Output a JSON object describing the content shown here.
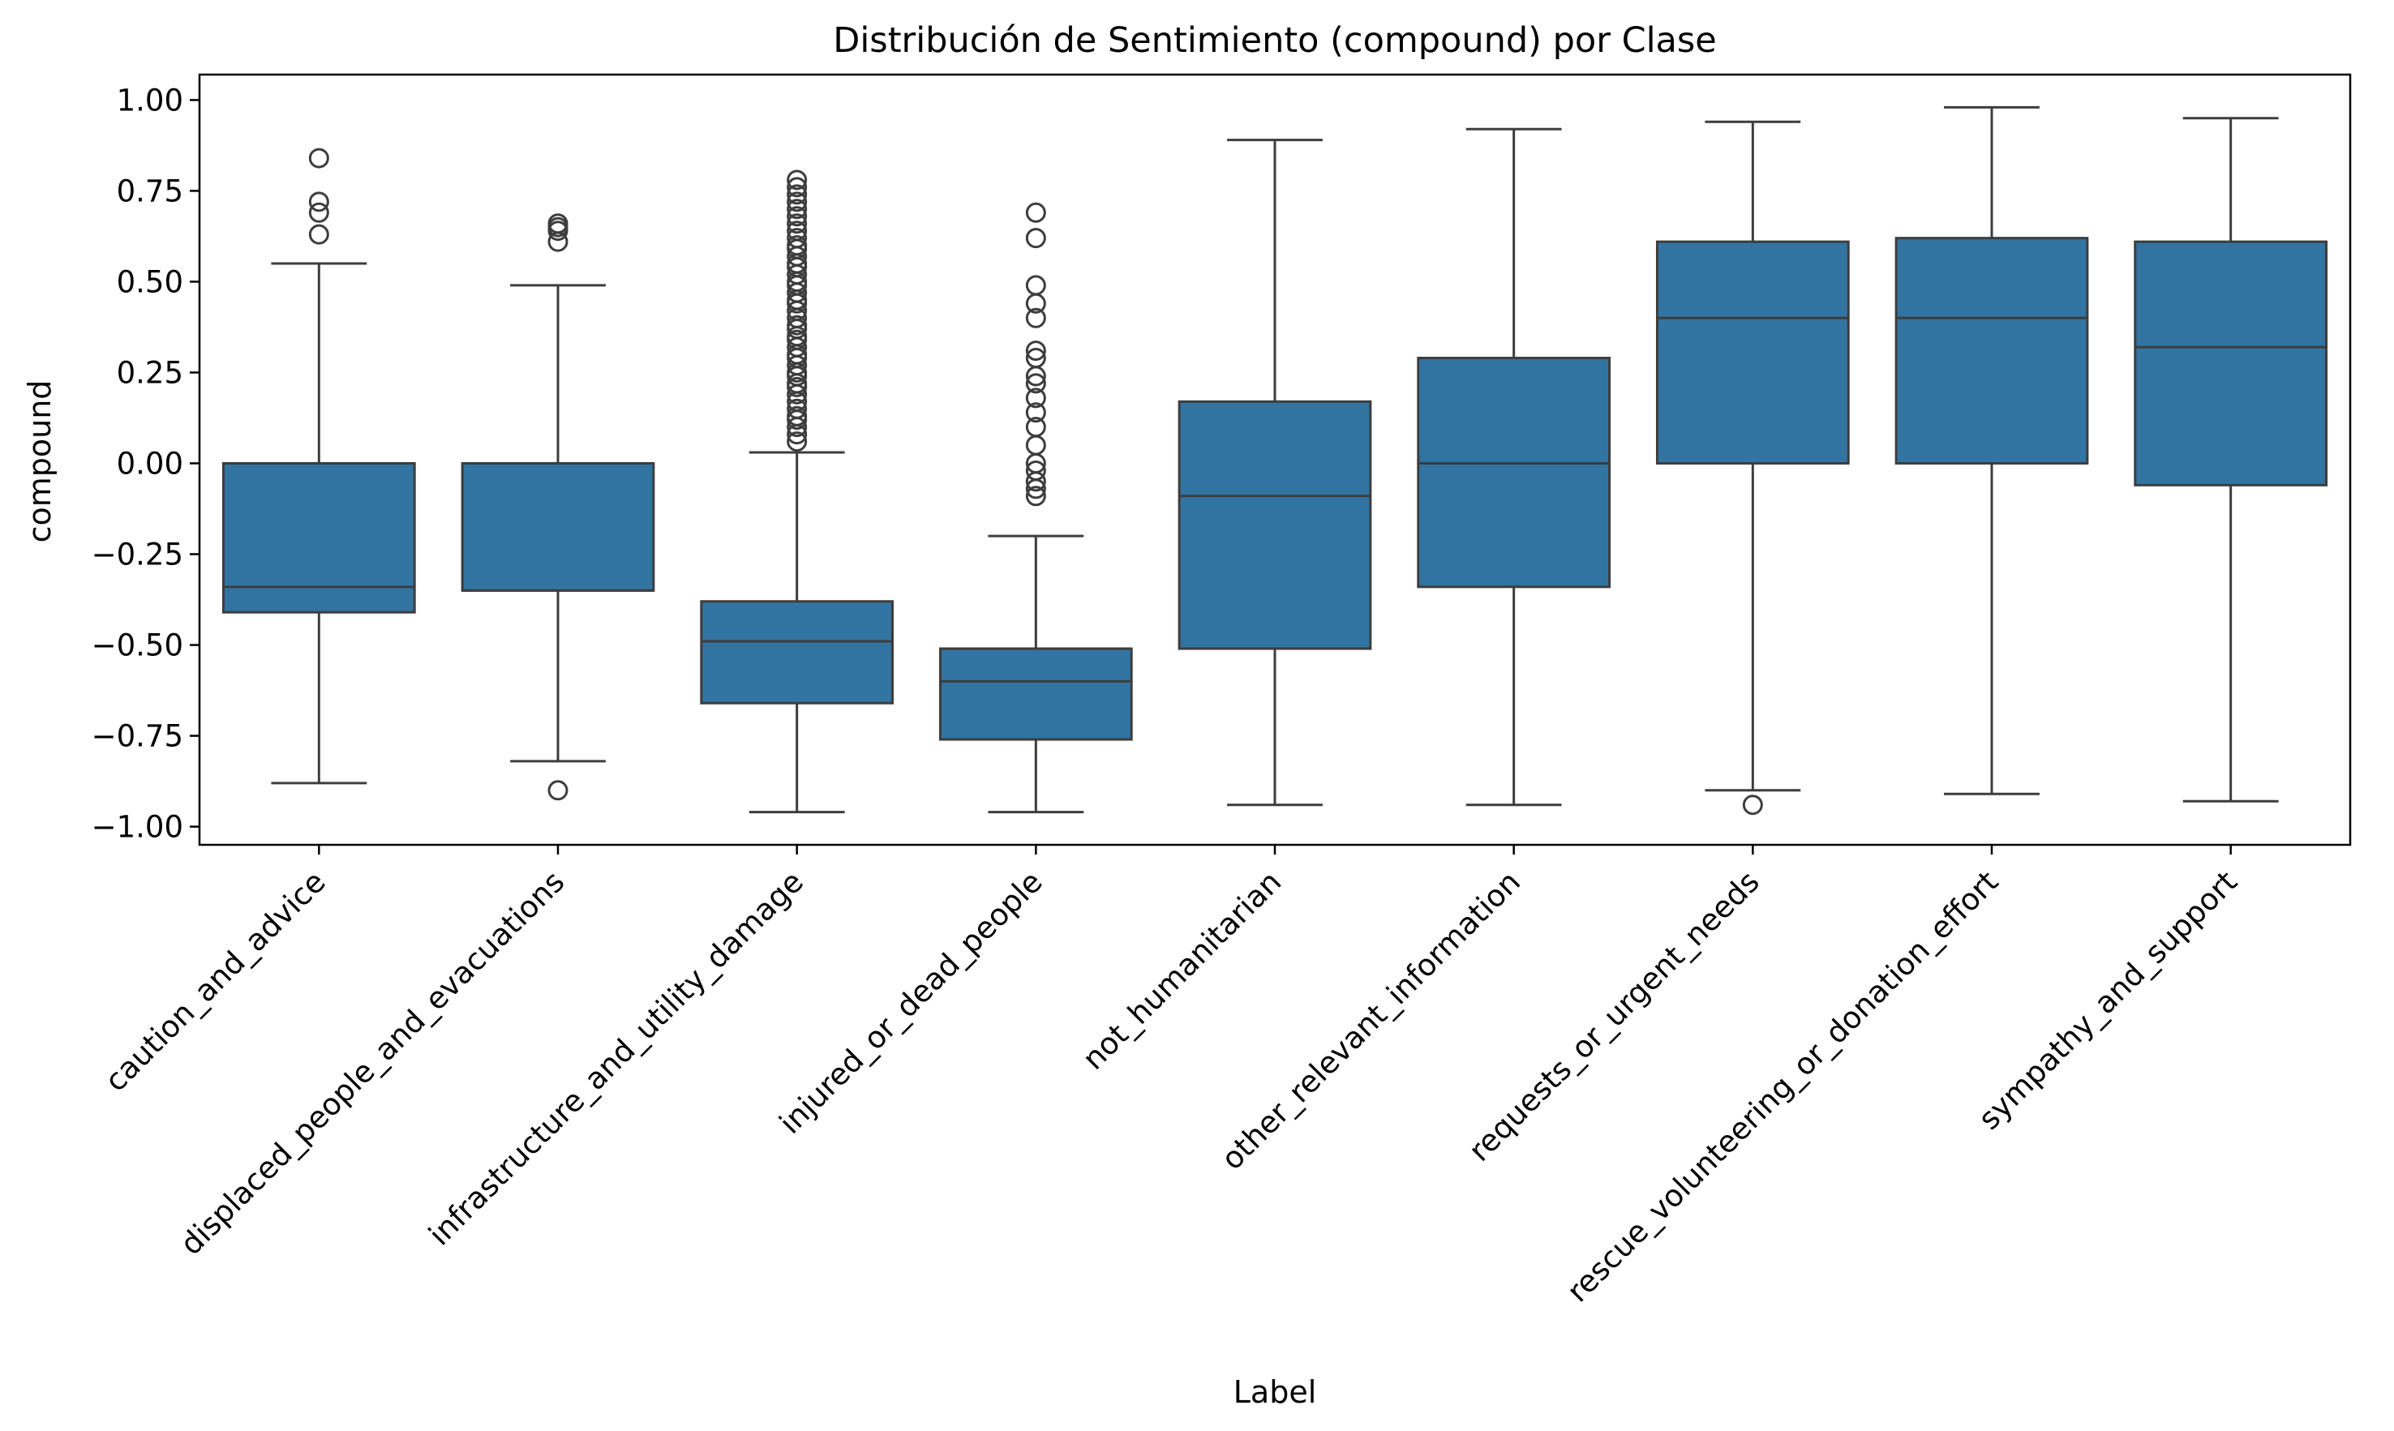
{
  "chart_data": {
    "type": "box",
    "title": "Distribución de Sentimiento (compound) por Clase",
    "xlabel": "Label",
    "ylabel": "compound",
    "ylim": [
      -1.05,
      1.07
    ],
    "yticks": [
      1.0,
      0.75,
      0.5,
      0.25,
      0.0,
      -0.25,
      -0.5,
      -0.75,
      -1.0
    ],
    "ytick_labels": [
      "1.00",
      "0.75",
      "0.50",
      "0.25",
      "0.00",
      "−0.25",
      "−0.50",
      "−0.75",
      "−1.00"
    ],
    "grid": false,
    "box_color": "#3274a1",
    "line_color": "#3d3d3d",
    "categories": [
      "caution_and_advice",
      "displaced_people_and_evacuations",
      "infrastructure_and_utility_damage",
      "injured_or_dead_people",
      "not_humanitarian",
      "other_relevant_information",
      "requests_or_urgent_needs",
      "rescue_volunteering_or_donation_effort",
      "sympathy_and_support"
    ],
    "boxes": [
      {
        "whisker_low": -0.88,
        "q1": -0.41,
        "median": -0.34,
        "q3": 0.0,
        "whisker_high": 0.55,
        "outliers": [
          0.63,
          0.69,
          0.72,
          0.84
        ]
      },
      {
        "whisker_low": -0.82,
        "q1": -0.35,
        "median": -0.35,
        "q3": 0.0,
        "whisker_high": 0.49,
        "outliers": [
          -0.9,
          0.61,
          0.64,
          0.65,
          0.66
        ]
      },
      {
        "whisker_low": -0.96,
        "q1": -0.66,
        "median": -0.49,
        "q3": -0.38,
        "whisker_high": 0.03,
        "outliers": [
          0.06,
          0.08,
          0.1,
          0.12,
          0.13,
          0.15,
          0.17,
          0.19,
          0.21,
          0.22,
          0.24,
          0.25,
          0.27,
          0.29,
          0.3,
          0.32,
          0.34,
          0.35,
          0.37,
          0.38,
          0.4,
          0.42,
          0.44,
          0.45,
          0.47,
          0.49,
          0.5,
          0.52,
          0.54,
          0.55,
          0.57,
          0.59,
          0.6,
          0.62,
          0.64,
          0.66,
          0.68,
          0.7,
          0.72,
          0.74,
          0.76,
          0.78
        ]
      },
      {
        "whisker_low": -0.96,
        "q1": -0.76,
        "median": -0.6,
        "q3": -0.51,
        "whisker_high": -0.2,
        "outliers": [
          -0.09,
          -0.07,
          -0.05,
          -0.02,
          0.0,
          0.05,
          0.1,
          0.14,
          0.18,
          0.22,
          0.24,
          0.29,
          0.31,
          0.4,
          0.44,
          0.49,
          0.62,
          0.69
        ]
      },
      {
        "whisker_low": -0.94,
        "q1": -0.51,
        "median": -0.09,
        "q3": 0.17,
        "whisker_high": 0.89,
        "outliers": []
      },
      {
        "whisker_low": -0.94,
        "q1": -0.34,
        "median": 0.0,
        "q3": 0.29,
        "whisker_high": 0.92,
        "outliers": []
      },
      {
        "whisker_low": -0.9,
        "q1": 0.0,
        "median": 0.4,
        "q3": 0.61,
        "whisker_high": 0.94,
        "outliers": [
          -0.94
        ]
      },
      {
        "whisker_low": -0.91,
        "q1": 0.0,
        "median": 0.4,
        "q3": 0.62,
        "whisker_high": 0.98,
        "outliers": []
      },
      {
        "whisker_low": -0.93,
        "q1": -0.06,
        "median": 0.32,
        "q3": 0.61,
        "whisker_high": 0.95,
        "outliers": []
      }
    ]
  }
}
